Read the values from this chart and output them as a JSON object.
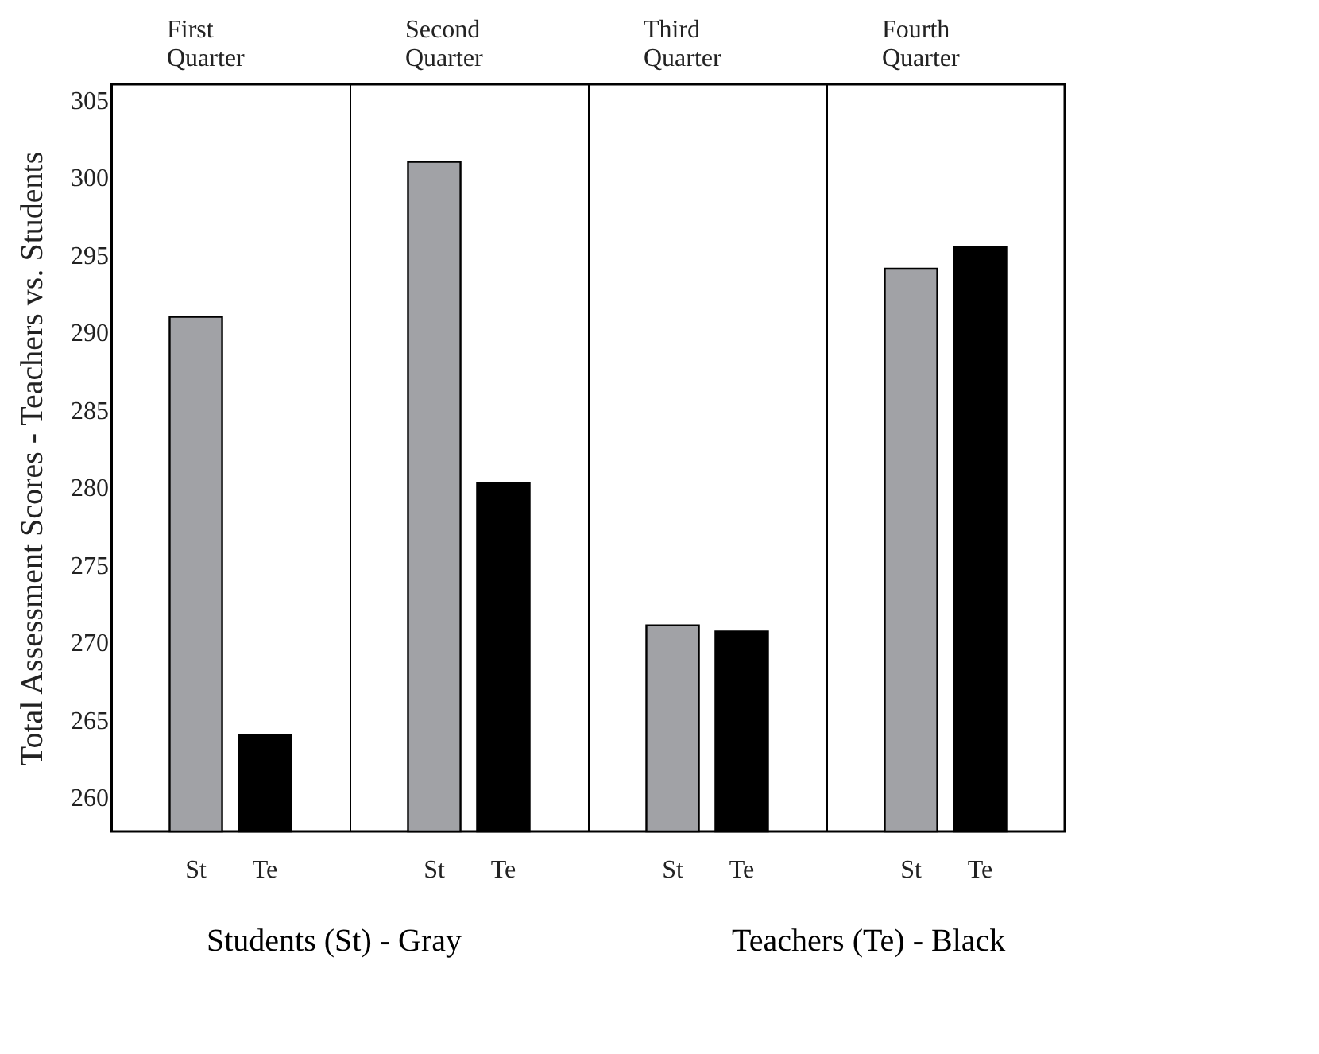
{
  "chart_data": {
    "type": "bar",
    "ylabel": "Total Assessment Scores - Teachers vs. Students",
    "categories": [
      "First Quarter",
      "Second Quarter",
      "Third Quarter",
      "Fourth Quarter"
    ],
    "series": [
      {
        "name": "St",
        "color": "#a1a2a6",
        "values": [
          291,
          301,
          271.1,
          294.1
        ]
      },
      {
        "name": "Te",
        "color": "#000000",
        "values": [
          264,
          280.3,
          270.7,
          295.5
        ]
      }
    ],
    "ylim": [
      257.8,
      306
    ],
    "yticks": [
      260,
      265,
      270,
      275,
      280,
      285,
      290,
      295,
      300,
      305
    ],
    "grid": "x",
    "legend": false,
    "annotations": [
      "Students (St) - Gray",
      "Teachers (Te) - Black"
    ]
  }
}
